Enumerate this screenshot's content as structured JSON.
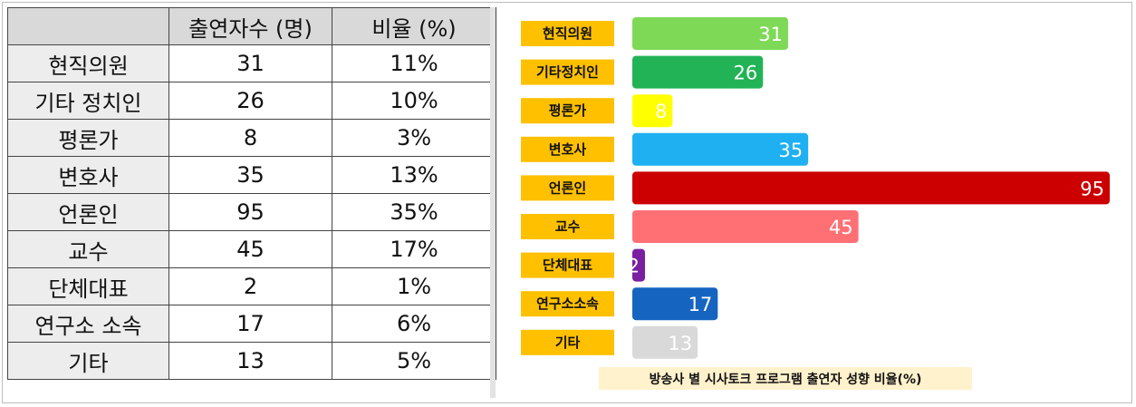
{
  "table": {
    "headers": [
      "",
      "출연자수 (명)",
      "비율 (%)"
    ],
    "rows": [
      {
        "label": "현직의원",
        "count": "31",
        "ratio": "11%"
      },
      {
        "label": "기타 정치인",
        "count": "26",
        "ratio": "10%"
      },
      {
        "label": "평론가",
        "count": "8",
        "ratio": "3%"
      },
      {
        "label": "변호사",
        "count": "35",
        "ratio": "13%"
      },
      {
        "label": "언론인",
        "count": "95",
        "ratio": "35%"
      },
      {
        "label": "교수",
        "count": "45",
        "ratio": "17%"
      },
      {
        "label": "단체대표",
        "count": "2",
        "ratio": "1%"
      },
      {
        "label": "연구소 소속",
        "count": "17",
        "ratio": "6%"
      },
      {
        "label": "기타",
        "count": "13",
        "ratio": "5%"
      }
    ]
  },
  "chart_data": {
    "type": "bar",
    "orientation": "horizontal",
    "title": "방송사 별 시사토크 프로그램 출연자 성향 비율(%)",
    "categories": [
      "현직의원",
      "기타정치인",
      "평론가",
      "변호사",
      "언론인",
      "교수",
      "단체대표",
      "연구소소속",
      "기타"
    ],
    "values": [
      31,
      26,
      8,
      35,
      95,
      45,
      2,
      17,
      13
    ],
    "colors": [
      "#7ed957",
      "#21b356",
      "#ffff00",
      "#1fb0f2",
      "#cc0000",
      "#ff7075",
      "#7a1fa2",
      "#1565c0",
      "#d9d9d9"
    ],
    "label_box_color": "#ffc000",
    "caption_box_color": "#fff2cc",
    "xlim": [
      0,
      95
    ],
    "grid": false,
    "legend": "none"
  }
}
